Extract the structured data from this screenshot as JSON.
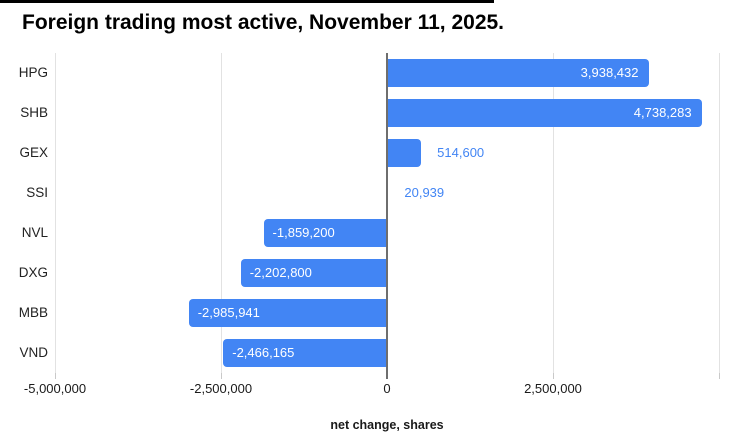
{
  "title": "Foreign trading most active, November 11, 2025.",
  "chart_data": {
    "type": "bar",
    "orientation": "horizontal",
    "title": "Foreign trading most active, November 11, 2025.",
    "xlabel": "net change, shares",
    "ylabel": "",
    "categories": [
      "HPG",
      "SHB",
      "GEX",
      "SSI",
      "NVL",
      "DXG",
      "MBB",
      "VND"
    ],
    "values": [
      3938432,
      4738283,
      514600,
      20939,
      -1859200,
      -2202800,
      -2985941,
      -2466165
    ],
    "value_labels": [
      "3,938,432",
      "4,738,283",
      "514,600",
      "20,939",
      "-1,859,200",
      "-2,202,800",
      "-2,985,941",
      "-2,466,165"
    ],
    "xlim": [
      -5000000,
      5000000
    ],
    "x_ticks": [
      {
        "value": -5000000,
        "label": "-5,000,000"
      },
      {
        "value": -2500000,
        "label": "-2,500,000"
      },
      {
        "value": 0,
        "label": "0"
      },
      {
        "value": 2500000,
        "label": "2,500,000"
      },
      {
        "value": 5000000,
        "label": ""
      }
    ],
    "grid": true,
    "legend": "none",
    "bar_color": "#4285f4",
    "outside_label_color": "#4285f4",
    "inside_label_color": "#ffffff"
  }
}
